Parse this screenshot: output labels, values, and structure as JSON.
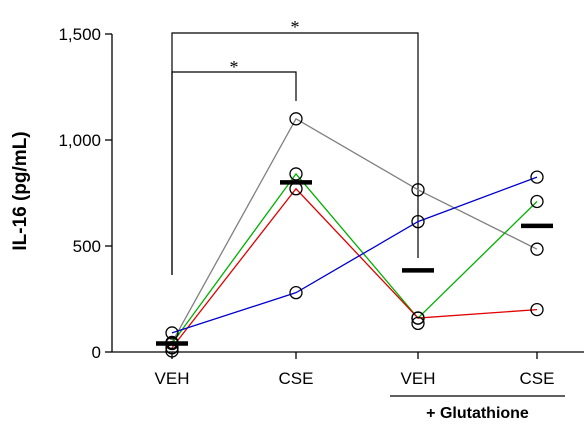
{
  "chart_data": {
    "type": "line",
    "ylabel": "IL-16 (pg/mL)",
    "ylim": [
      0,
      1500
    ],
    "yticks": [
      0,
      500,
      1000,
      1500
    ],
    "ytick_labels": [
      "0",
      "500",
      "1,000",
      "1,500"
    ],
    "categories": [
      "VEH",
      "CSE",
      "VEH",
      "CSE"
    ],
    "group_label": "+ Glutathione",
    "group_span": [
      2,
      3
    ],
    "series": [
      {
        "color": "#808080",
        "values": [
          45,
          1100,
          765,
          485
        ]
      },
      {
        "color": "#00b000",
        "values": [
          40,
          840,
          160,
          710
        ]
      },
      {
        "color": "#e00000",
        "values": [
          20,
          770,
          160,
          200
        ]
      },
      {
        "color": "#0000d0",
        "values": [
          90,
          280,
          615,
          825
        ]
      }
    ],
    "extra_points": [
      {
        "x": 0,
        "y": 5
      },
      {
        "x": 2,
        "y": 135
      }
    ],
    "means": [
      40,
      800,
      385,
      595
    ],
    "significance": [
      {
        "from": 0,
        "to": 1,
        "label": "*"
      },
      {
        "from": 0,
        "to": 2,
        "label": "*"
      }
    ]
  }
}
